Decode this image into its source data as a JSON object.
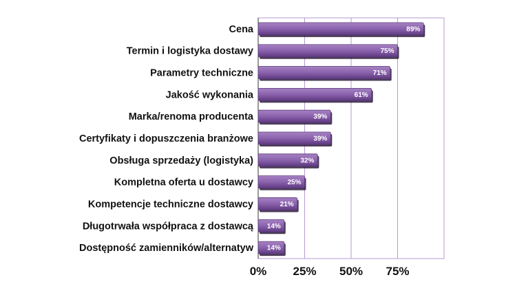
{
  "chart_data": {
    "type": "bar",
    "orientation": "horizontal",
    "categories": [
      "Cena",
      "Termin i logistyka dostawy",
      "Parametry techniczne",
      "Jakość wykonania",
      "Marka/renoma producenta",
      "Certyfikaty i dopuszczenia branżowe",
      "Obsługa sprzedaży (logistyka)",
      "Kompletna oferta u dostawcy",
      "Kompetencje techniczne dostawcy",
      "Długotrwała współpraca z dostawcą",
      "Dostępność zamienników/alternatyw"
    ],
    "values": [
      89,
      75,
      71,
      61,
      39,
      39,
      32,
      25,
      21,
      14,
      14
    ],
    "value_labels": [
      "89%",
      "75%",
      "71%",
      "61%",
      "39%",
      "39%",
      "32%",
      "25%",
      "21%",
      "14%",
      "14%"
    ],
    "xticks": [
      "0%",
      "25%",
      "50%",
      "75%"
    ],
    "xlim": [
      0,
      100
    ],
    "grid": true,
    "bar_color": "#8b62ad",
    "bar_highlight_color": "#a583c2",
    "bar_edge_color": "#5e3a80",
    "shadow_color": "#2b1a3a",
    "grid_color": "#b59ad0"
  }
}
